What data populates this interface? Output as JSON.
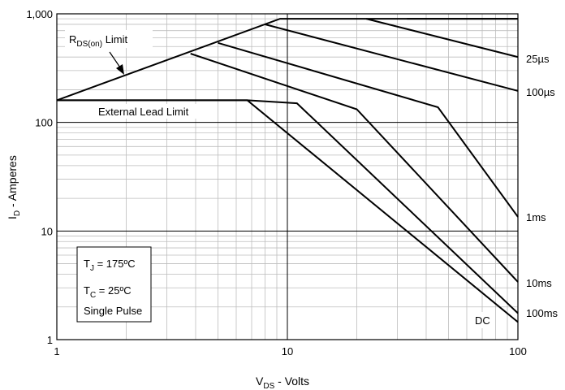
{
  "chart_data": {
    "type": "line",
    "title": "",
    "xlabel": {
      "main": "V",
      "sub": "DS",
      "rest": " - Volts"
    },
    "ylabel": {
      "main": "I",
      "sub": "D",
      "rest": " - Amperes"
    },
    "x_scale": "log",
    "y_scale": "log",
    "xlim": [
      1,
      100
    ],
    "ylim": [
      1,
      1000
    ],
    "x_ticks": [
      {
        "value": 1,
        "label": "1"
      },
      {
        "value": 10,
        "label": "10"
      },
      {
        "value": 100,
        "label": "100"
      }
    ],
    "y_ticks": [
      {
        "value": 1,
        "label": "1"
      },
      {
        "value": 10,
        "label": "10"
      },
      {
        "value": 100,
        "label": "100"
      },
      {
        "value": 1000,
        "label": "1,000"
      }
    ],
    "grid": true,
    "series": [
      {
        "name": "25µs",
        "points": [
          [
            1,
            160
          ],
          [
            9.3,
            900
          ],
          [
            100,
            900
          ]
        ]
      },
      {
        "name": "25µs",
        "points": [
          [
            22,
            900
          ],
          [
            100,
            400
          ]
        ]
      },
      {
        "name": "100µs",
        "points": [
          [
            8,
            800
          ],
          [
            100,
            195
          ]
        ]
      },
      {
        "name": "1ms",
        "points": [
          [
            5,
            540
          ],
          [
            45,
            138
          ],
          [
            100,
            13.5
          ]
        ]
      },
      {
        "name": "10ms",
        "points": [
          [
            3.8,
            430
          ],
          [
            20,
            132
          ],
          [
            100,
            3.4
          ]
        ]
      },
      {
        "name": "100ms",
        "points": [
          [
            1,
            160
          ],
          [
            6.7,
            160
          ],
          [
            11,
            150
          ],
          [
            100,
            1.75
          ]
        ]
      },
      {
        "name": "DC",
        "points": [
          [
            1,
            160
          ],
          [
            6.7,
            160
          ],
          [
            100,
            1.45
          ]
        ]
      },
      {
        "name": "",
        "points": [
          [
            33,
            900
          ],
          [
            100,
            900
          ]
        ]
      }
    ],
    "annotations": {
      "rds_limit": {
        "main": "R",
        "sub": "DS(on)",
        "rest": " Limit"
      },
      "lead_limit": "External Lead Limit",
      "conditions": {
        "tj": {
          "main": "T",
          "sub": "J",
          "rest": " = 175ºC"
        },
        "tc": {
          "main": "T",
          "sub": "C",
          "rest": " = 25ºC"
        },
        "pulse": "Single Pulse"
      }
    },
    "curve_labels": [
      "25µs",
      "100µs",
      "1ms",
      "10ms",
      "100ms",
      "DC"
    ]
  }
}
